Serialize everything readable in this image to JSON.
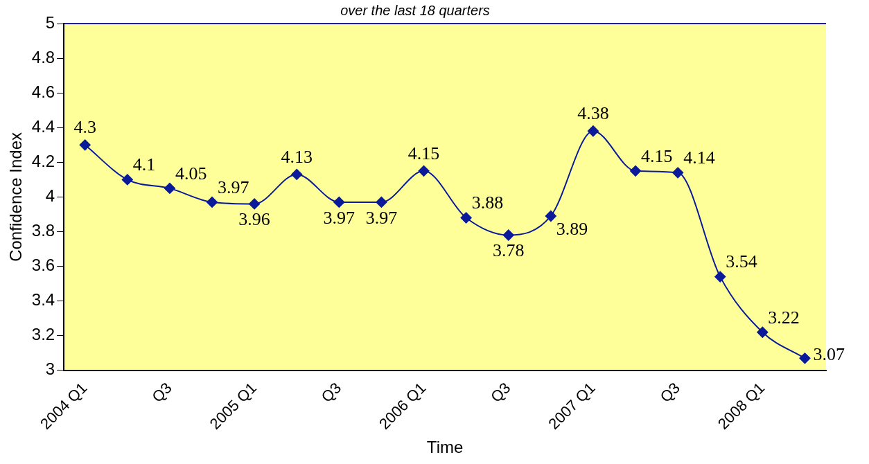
{
  "chart_data": {
    "type": "line",
    "subtitle": "over the last 18 quarters",
    "xlabel": "Time",
    "ylabel": "Confidence Index",
    "categories": [
      "2004 Q1",
      null,
      "Q3",
      null,
      "2005 Q1",
      null,
      "Q3",
      null,
      "2006 Q1",
      null,
      "Q3",
      null,
      "2007 Q1",
      null,
      "Q3",
      null,
      "2008 Q1",
      null
    ],
    "series": [
      {
        "color": "#0a1a99",
        "values": [
          4.3,
          4.1,
          4.05,
          3.97,
          3.96,
          4.13,
          3.97,
          3.97,
          4.15,
          3.88,
          3.78,
          3.89,
          4.38,
          4.15,
          4.14,
          3.54,
          3.22,
          3.07
        ]
      }
    ],
    "ylim": [
      3,
      5
    ],
    "yticks": [
      3,
      3.2,
      3.4,
      3.6,
      3.8,
      4,
      4.2,
      4.4,
      4.6,
      4.8,
      5
    ],
    "grid": false,
    "legend": false,
    "marker": "diamond",
    "line_style": "solid",
    "data_labels": true
  }
}
